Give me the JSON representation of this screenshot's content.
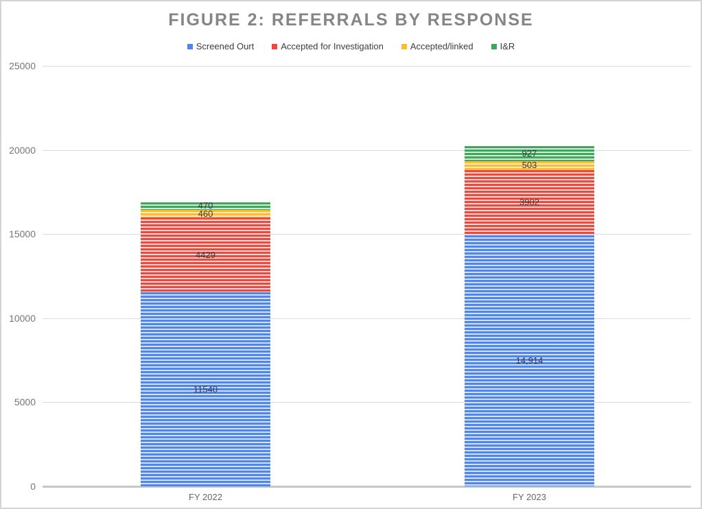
{
  "title": "FIGURE 2: REFERRALS BY RESPONSE",
  "chart_data": {
    "type": "bar",
    "stacked": true,
    "title": "FIGURE 2: REFERRALS BY RESPONSE",
    "categories": [
      "FY 2022",
      "FY 2023"
    ],
    "series": [
      {
        "name": "Screened Ourt",
        "values": [
          11540,
          14914
        ],
        "data_labels": [
          "11540",
          "14,914"
        ],
        "color": "#4e86ec",
        "stripe_light": "#d4e0f8"
      },
      {
        "name": "Accepted for Investigation",
        "values": [
          4429,
          3902
        ],
        "data_labels": [
          "4429",
          "3902"
        ],
        "color": "#ea4b41",
        "stripe_light": "#fad7d3"
      },
      {
        "name": "Accepted/linked",
        "values": [
          460,
          503
        ],
        "data_labels": [
          "460",
          "503"
        ],
        "color": "#fbbc2f",
        "stripe_light": "#fdeac0"
      },
      {
        "name": "I&R",
        "values": [
          470,
          927
        ],
        "data_labels": [
          "470",
          "927"
        ],
        "color": "#3fa65c",
        "stripe_light": "#d0ebd9"
      }
    ],
    "yticks": [
      0,
      5000,
      10000,
      15000,
      20000,
      25000
    ],
    "ylim": [
      0,
      25000
    ],
    "grid": true,
    "legend_position": "top",
    "bar_pattern": "horizontal-stripes"
  }
}
